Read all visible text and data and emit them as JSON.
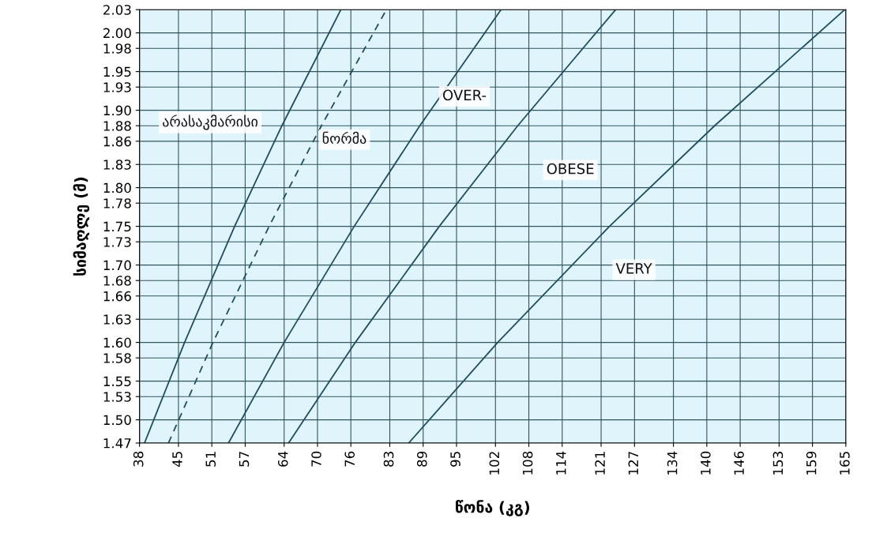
{
  "chart_data": {
    "type": "line",
    "xlabel": "წონა (კგ)",
    "ylabel": "სიმაღლე (მ)",
    "series": [
      {
        "color": "#1f4e5f",
        "line_style": "solid",
        "x": [
          38.9,
          46.1,
          55.1,
          63.6,
          74.2
        ],
        "values": [
          1.47,
          1.6,
          1.75,
          1.88,
          2.03
        ]
      },
      {
        "color": "#1f4e5f",
        "line_style": "dashed",
        "x": [
          43.2,
          51.2,
          61.3,
          70.7,
          82.4
        ],
        "values": [
          1.47,
          1.6,
          1.75,
          1.88,
          2.03
        ]
      },
      {
        "color": "#1f4e5f",
        "line_style": "solid",
        "x": [
          54.0,
          64.0,
          76.6,
          88.4,
          103.0
        ],
        "values": [
          1.47,
          1.6,
          1.75,
          1.88,
          2.03
        ]
      },
      {
        "color": "#1f4e5f",
        "line_style": "solid",
        "x": [
          64.8,
          76.8,
          91.9,
          106.0,
          123.6
        ],
        "values": [
          1.47,
          1.6,
          1.75,
          1.88,
          2.03
        ]
      },
      {
        "color": "#1f4e5f",
        "line_style": "solid",
        "x": [
          86.4,
          102.4,
          122.5,
          141.4,
          164.8
        ],
        "values": [
          1.47,
          1.6,
          1.75,
          1.88,
          2.03
        ]
      }
    ],
    "annotations": [
      "არასაკმარისი",
      "ნორმა",
      "OVER-",
      "OBESE",
      "VERY"
    ],
    "xlim": [
      38,
      165
    ],
    "xticks": [
      38,
      45,
      51,
      57,
      64,
      70,
      76,
      83,
      89,
      95,
      102,
      108,
      114,
      121,
      127,
      134,
      140,
      146,
      153,
      159,
      165
    ],
    "ylim": [
      1.47,
      2.03
    ],
    "yticks": [
      1.47,
      {
        "value": 1.5,
        "label": "1.50"
      },
      1.53,
      1.55,
      1.58,
      {
        "value": 1.6,
        "label": "1.60"
      },
      1.63,
      1.66,
      1.68,
      {
        "value": 1.7,
        "label": "1.70"
      },
      1.73,
      1.75,
      1.78,
      {
        "value": 1.8,
        "label": "1.80"
      },
      1.83,
      1.86,
      1.88,
      {
        "value": 1.9,
        "label": "1.90"
      },
      1.93,
      1.95,
      1.98,
      {
        "value": 2.0,
        "label": "2.00"
      },
      2.03
    ],
    "grid": true,
    "marker": "none"
  }
}
